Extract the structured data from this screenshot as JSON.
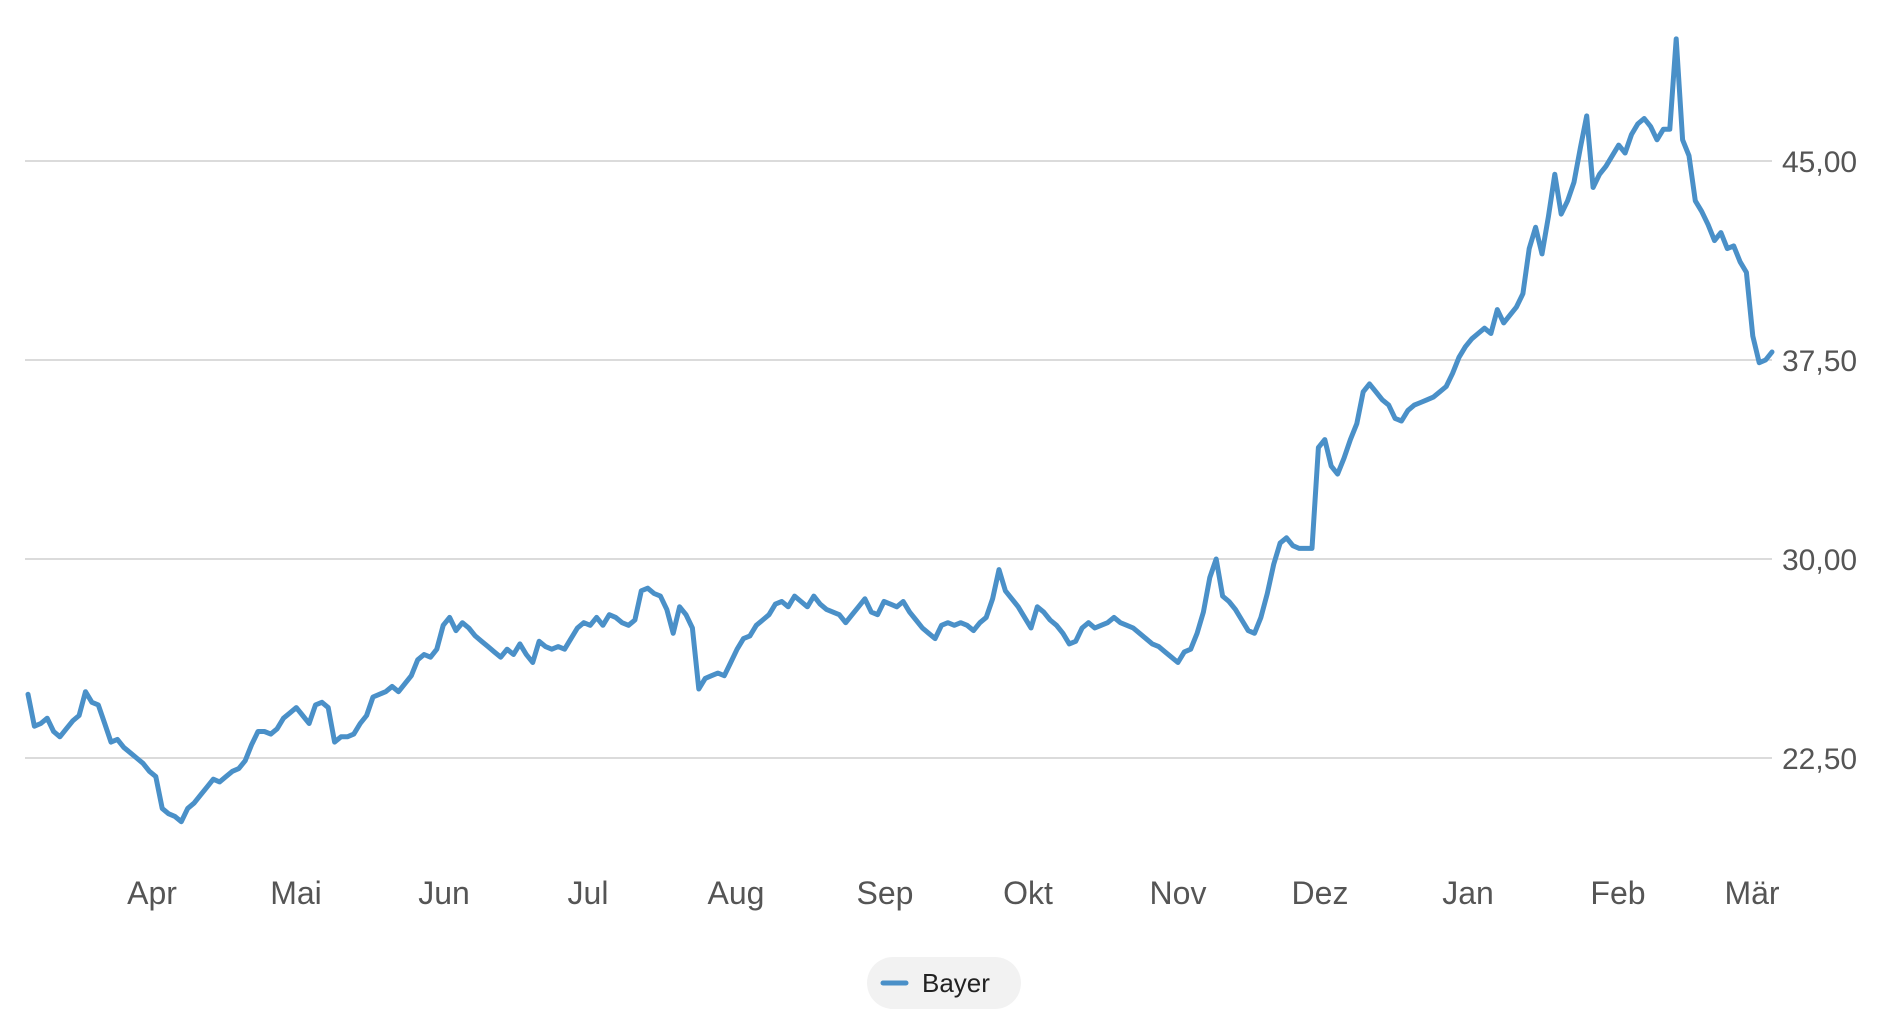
{
  "chart_data": {
    "type": "line",
    "title": "",
    "xlabel": "",
    "ylabel": "",
    "x_ticks": [
      "Apr",
      "Mai",
      "Jun",
      "Jul",
      "Aug",
      "Sep",
      "Okt",
      "Nov",
      "Dez",
      "Jan",
      "Feb",
      "Mär"
    ],
    "y_ticks": [
      "22,50",
      "30,00",
      "37,50",
      "45,00"
    ],
    "y_tick_values": [
      22.5,
      30.0,
      37.5,
      45.0
    ],
    "ylim": [
      19.0,
      50.0
    ],
    "grid": true,
    "legend": "bottom-center",
    "series": [
      {
        "name": "Bayer",
        "color": "#4a90c8",
        "values": [
          24.9,
          23.7,
          23.8,
          24.0,
          23.5,
          23.3,
          23.6,
          23.9,
          24.1,
          25.0,
          24.6,
          24.5,
          23.8,
          23.1,
          23.2,
          22.9,
          22.7,
          22.5,
          22.3,
          22.0,
          21.8,
          20.6,
          20.4,
          20.3,
          20.1,
          20.6,
          20.8,
          21.1,
          21.4,
          21.7,
          21.6,
          21.8,
          22.0,
          22.1,
          22.4,
          23.0,
          23.5,
          23.5,
          23.4,
          23.6,
          24.0,
          24.2,
          24.4,
          24.1,
          23.8,
          24.5,
          24.6,
          24.4,
          23.1,
          23.3,
          23.3,
          23.4,
          23.8,
          24.1,
          24.8,
          24.9,
          25.0,
          25.2,
          25.0,
          25.3,
          25.6,
          26.2,
          26.4,
          26.3,
          26.6,
          27.5,
          27.8,
          27.3,
          27.6,
          27.4,
          27.1,
          26.9,
          26.7,
          26.5,
          26.3,
          26.6,
          26.4,
          26.8,
          26.4,
          26.1,
          26.9,
          26.7,
          26.6,
          26.7,
          26.6,
          27.0,
          27.4,
          27.6,
          27.5,
          27.8,
          27.5,
          27.9,
          27.8,
          27.6,
          27.5,
          27.7,
          28.8,
          28.9,
          28.7,
          28.6,
          28.1,
          27.2,
          28.2,
          27.9,
          27.4,
          25.1,
          25.5,
          25.6,
          25.7,
          25.6,
          26.1,
          26.6,
          27.0,
          27.1,
          27.5,
          27.7,
          27.9,
          28.3,
          28.4,
          28.2,
          28.6,
          28.4,
          28.2,
          28.6,
          28.3,
          28.1,
          28.0,
          27.9,
          27.6,
          27.9,
          28.2,
          28.5,
          28.0,
          27.9,
          28.4,
          28.3,
          28.2,
          28.4,
          28.0,
          27.7,
          27.4,
          27.2,
          27.0,
          27.5,
          27.6,
          27.5,
          27.6,
          27.5,
          27.3,
          27.6,
          27.8,
          28.5,
          29.6,
          28.8,
          28.5,
          28.2,
          27.8,
          27.4,
          28.2,
          28.0,
          27.7,
          27.5,
          27.2,
          26.8,
          26.9,
          27.4,
          27.6,
          27.4,
          27.5,
          27.6,
          27.8,
          27.6,
          27.5,
          27.4,
          27.2,
          27.0,
          26.8,
          26.7,
          26.5,
          26.3,
          26.1,
          26.5,
          26.6,
          27.2,
          28.0,
          29.3,
          30.0,
          28.6,
          28.4,
          28.1,
          27.7,
          27.3,
          27.2,
          27.8,
          28.7,
          29.8,
          30.6,
          30.8,
          30.5,
          30.4,
          30.4,
          30.4,
          34.2,
          34.5,
          33.5,
          33.2,
          33.8,
          34.5,
          35.1,
          36.3,
          36.6,
          36.3,
          36.0,
          35.8,
          35.3,
          35.2,
          35.6,
          35.8,
          35.9,
          36.0,
          36.1,
          36.3,
          36.5,
          37.0,
          37.6,
          38.0,
          38.3,
          38.5,
          38.7,
          38.5,
          39.4,
          38.9,
          39.2,
          39.5,
          40.0,
          41.7,
          42.5,
          41.5,
          42.9,
          44.5,
          43.0,
          43.5,
          44.2,
          45.5,
          46.7,
          44.0,
          44.5,
          44.8,
          45.2,
          45.6,
          45.3,
          46.0,
          46.4,
          46.6,
          46.3,
          45.8,
          46.2,
          46.2,
          49.6,
          45.8,
          45.2,
          43.5,
          43.1,
          42.6,
          42.0,
          42.3,
          41.7,
          41.8,
          41.2,
          40.8,
          38.4,
          37.4,
          37.5,
          37.8
        ]
      }
    ]
  }
}
